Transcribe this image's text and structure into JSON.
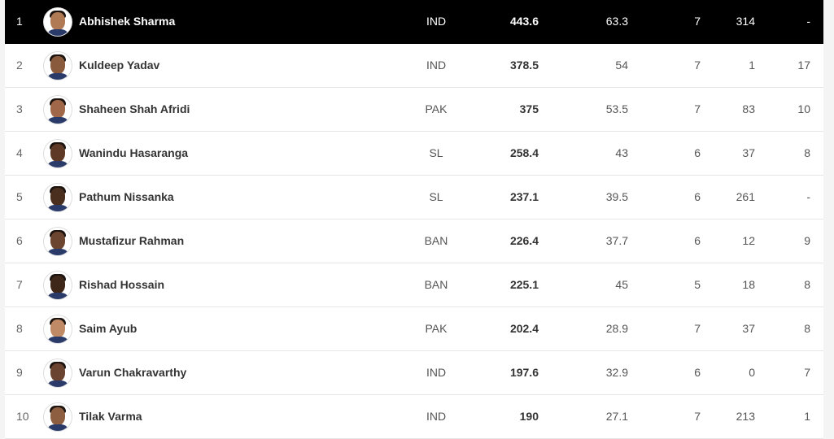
{
  "highlight_color": "#000000",
  "rows": [
    {
      "rank": "1",
      "name": "Abhishek Sharma",
      "country": "IND",
      "points": "443.6",
      "average": "63.3",
      "matches": "7",
      "runs": "314",
      "wickets": "-",
      "avatar_icon": "player-photo"
    },
    {
      "rank": "2",
      "name": "Kuldeep Yadav",
      "country": "IND",
      "points": "378.5",
      "average": "54",
      "matches": "7",
      "runs": "1",
      "wickets": "17",
      "avatar_icon": "player-photo"
    },
    {
      "rank": "3",
      "name": "Shaheen Shah Afridi",
      "country": "PAK",
      "points": "375",
      "average": "53.5",
      "matches": "7",
      "runs": "83",
      "wickets": "10",
      "avatar_icon": "player-photo"
    },
    {
      "rank": "4",
      "name": "Wanindu Hasaranga",
      "country": "SL",
      "points": "258.4",
      "average": "43",
      "matches": "6",
      "runs": "37",
      "wickets": "8",
      "avatar_icon": "player-photo"
    },
    {
      "rank": "5",
      "name": "Pathum Nissanka",
      "country": "SL",
      "points": "237.1",
      "average": "39.5",
      "matches": "6",
      "runs": "261",
      "wickets": "-",
      "avatar_icon": "player-photo"
    },
    {
      "rank": "6",
      "name": "Mustafizur Rahman",
      "country": "BAN",
      "points": "226.4",
      "average": "37.7",
      "matches": "6",
      "runs": "12",
      "wickets": "9",
      "avatar_icon": "player-photo"
    },
    {
      "rank": "7",
      "name": "Rishad Hossain",
      "country": "BAN",
      "points": "225.1",
      "average": "45",
      "matches": "5",
      "runs": "18",
      "wickets": "8",
      "avatar_icon": "player-photo"
    },
    {
      "rank": "8",
      "name": "Saim Ayub",
      "country": "PAK",
      "points": "202.4",
      "average": "28.9",
      "matches": "7",
      "runs": "37",
      "wickets": "8",
      "avatar_icon": "player-photo"
    },
    {
      "rank": "9",
      "name": "Varun Chakravarthy",
      "country": "IND",
      "points": "197.6",
      "average": "32.9",
      "matches": "6",
      "runs": "0",
      "wickets": "7",
      "avatar_icon": "player-photo"
    },
    {
      "rank": "10",
      "name": "Tilak Varma",
      "country": "IND",
      "points": "190",
      "average": "27.1",
      "matches": "7",
      "runs": "213",
      "wickets": "1",
      "avatar_icon": "player-photo"
    }
  ]
}
